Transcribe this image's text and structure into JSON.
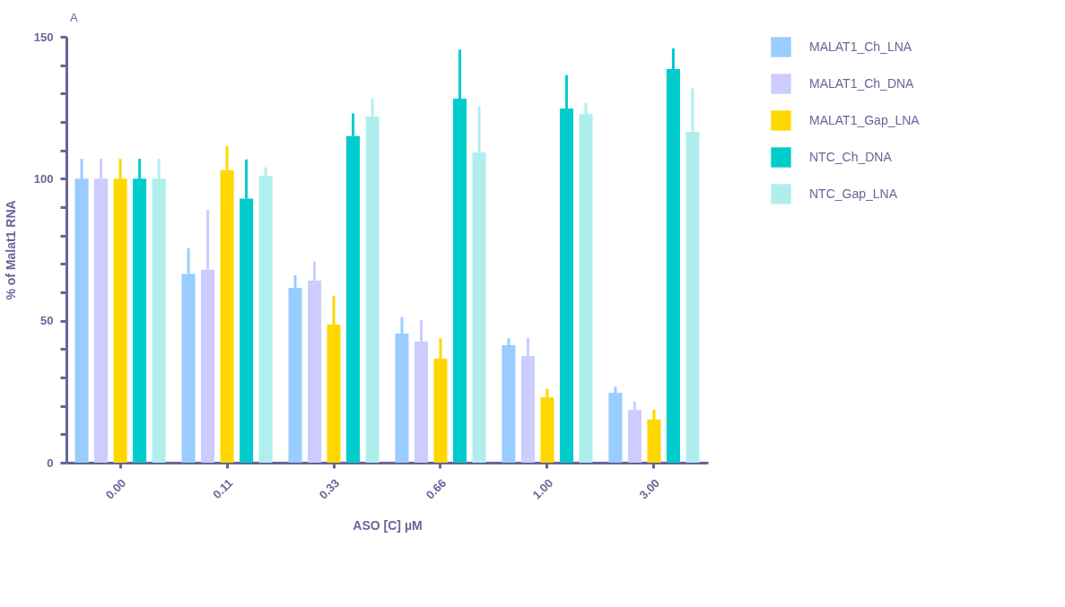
{
  "chart_data": {
    "type": "bar",
    "ylabel": "% of Malat1 RNA",
    "xlabel": "ASO [C] µM",
    "annotations": [
      "A"
    ],
    "categories": [
      "0.00",
      "0.11",
      "0.33",
      "0.66",
      "1.00",
      "3.00"
    ],
    "series": [
      {
        "name": "MALAT1_Ch_LNA",
        "color": "#99ccff",
        "values": [
          100,
          66.5,
          61.6,
          45.5,
          41.4,
          24.6
        ],
        "errors": [
          [
            100,
            107
          ],
          [
            66.5,
            75.5
          ],
          [
            61.6,
            66
          ],
          [
            45.5,
            51.3
          ],
          [
            41.4,
            43.8
          ],
          [
            24.6,
            26.7
          ]
        ]
      },
      {
        "name": "MALAT1_Ch_DNA",
        "color": "#ccccff",
        "values": [
          100,
          68,
          64.1,
          42.6,
          37.6,
          18.6
        ],
        "errors": [
          [
            100,
            107
          ],
          [
            68,
            89
          ],
          [
            64.1,
            70.8
          ],
          [
            42.6,
            50.2
          ],
          [
            37.6,
            44
          ],
          [
            18.6,
            21.5
          ]
        ]
      },
      {
        "name": "MALAT1_Gap_LNA",
        "color": "#ffd700",
        "values": [
          100,
          103,
          48.6,
          36.6,
          23,
          15.2
        ],
        "errors": [
          [
            100,
            107
          ],
          [
            103,
            111.5
          ],
          [
            48.6,
            58.8
          ],
          [
            36.6,
            43.8
          ],
          [
            23,
            26
          ],
          [
            15.2,
            18.7
          ]
        ]
      },
      {
        "name": "NTC_Ch_DNA",
        "color": "#00cccc",
        "values": [
          100,
          93,
          115,
          128.2,
          124.7,
          138.6
        ],
        "errors": [
          [
            100,
            107
          ],
          [
            93,
            106.8
          ],
          [
            115,
            123
          ],
          [
            128.2,
            145.5
          ],
          [
            124.7,
            136.5
          ],
          [
            138.6,
            145.9
          ]
        ]
      },
      {
        "name": "NTC_Gap_LNA",
        "color": "#b0eeee",
        "values": [
          100,
          101,
          121.9,
          109.3,
          122.8,
          116.5
        ],
        "errors": [
          [
            100,
            107
          ],
          [
            101,
            104
          ],
          [
            121.9,
            128.2
          ],
          [
            109.3,
            125.5
          ],
          [
            122.8,
            126.6
          ],
          [
            116.5,
            131.8
          ]
        ]
      }
    ],
    "ylim": [
      0,
      150
    ],
    "yticks": [
      0,
      {
        "value": 10,
        "label": null
      },
      {
        "value": 20,
        "label": null
      },
      {
        "value": 30,
        "label": null
      },
      {
        "value": 40,
        "label": null
      },
      50,
      {
        "value": 60,
        "label": null
      },
      {
        "value": 70,
        "label": null
      },
      {
        "value": 80,
        "label": null
      },
      {
        "value": 90,
        "label": null
      },
      100,
      {
        "value": 110,
        "label": null
      },
      {
        "value": 120,
        "label": null
      },
      {
        "value": 130,
        "label": null
      },
      {
        "value": 140,
        "label": null
      },
      150
    ],
    "grid": false,
    "legend": "top right"
  }
}
